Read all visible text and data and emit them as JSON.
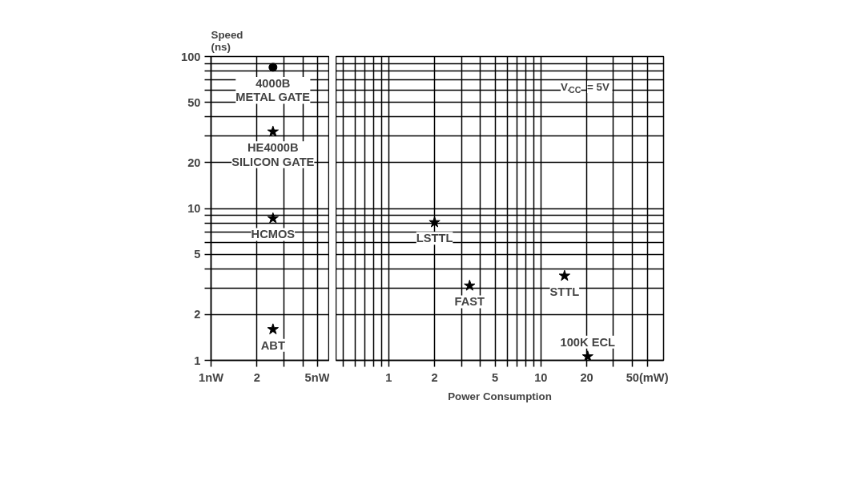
{
  "chart_data": [
    {
      "type": "scatter",
      "log": "xy",
      "ylabel": "Speed\n(ns)",
      "xlim": [
        1,
        6
      ],
      "xticks": [
        {
          "value": 1,
          "label": "1nW"
        },
        2,
        {
          "value": 3,
          "label": null
        },
        {
          "value": 4,
          "label": null
        },
        {
          "value": 5,
          "label": "5nW"
        }
      ],
      "ylim": [
        1,
        100
      ],
      "yticks": [
        1,
        2,
        {
          "value": 3,
          "label": null
        },
        {
          "value": 4,
          "label": null
        },
        5,
        {
          "value": 6,
          "label": null
        },
        {
          "value": 7,
          "label": null
        },
        {
          "value": 8,
          "label": null
        },
        {
          "value": 9,
          "label": null
        },
        10,
        20,
        {
          "value": 30,
          "label": null
        },
        {
          "value": 40,
          "label": null
        },
        50,
        {
          "value": 60,
          "label": null
        },
        {
          "value": 70,
          "label": null
        },
        {
          "value": 80,
          "label": null
        },
        {
          "value": 90,
          "label": null
        },
        100
      ],
      "grid": true,
      "series": [
        {
          "name": "4000B\nMETAL GATE",
          "color": "#000000",
          "marker": "circle",
          "x": [
            2.55
          ],
          "values": [
            85
          ]
        },
        {
          "name": "HE4000B\nSILICON GATE",
          "color": "#000000",
          "marker": "star",
          "x": [
            2.55
          ],
          "values": [
            32
          ]
        },
        {
          "name": "HCMOS",
          "color": "#000000",
          "marker": "star",
          "x": [
            2.55
          ],
          "values": [
            8.6
          ]
        },
        {
          "name": "ABT",
          "color": "#000000",
          "marker": "star",
          "x": [
            2.55
          ],
          "values": [
            1.6
          ]
        }
      ]
    },
    {
      "type": "scatter",
      "log": "xy",
      "xlabel": "Power Consumption",
      "xlim": [
        0.45,
        64
      ],
      "xticks": [
        {
          "value": 0.5,
          "label": null
        },
        {
          "value": 0.6,
          "label": null
        },
        {
          "value": 0.7,
          "label": null
        },
        {
          "value": 0.8,
          "label": null
        },
        {
          "value": 0.9,
          "label": null
        },
        1,
        2,
        {
          "value": 3,
          "label": null
        },
        {
          "value": 4,
          "label": null
        },
        5,
        {
          "value": 6,
          "label": null
        },
        {
          "value": 7,
          "label": null
        },
        {
          "value": 8,
          "label": null
        },
        {
          "value": 9,
          "label": null
        },
        10,
        20,
        {
          "value": 30,
          "label": null
        },
        {
          "value": 40,
          "label": null
        },
        {
          "value": 50,
          "label": "50(mW)"
        }
      ],
      "ylim": [
        1,
        100
      ],
      "yticks": [
        1,
        2,
        {
          "value": 3,
          "label": null
        },
        {
          "value": 4,
          "label": null
        },
        5,
        {
          "value": 6,
          "label": null
        },
        {
          "value": 7,
          "label": null
        },
        {
          "value": 8,
          "label": null
        },
        {
          "value": 9,
          "label": null
        },
        10,
        20,
        {
          "value": 30,
          "label": null
        },
        {
          "value": 40,
          "label": null
        },
        50,
        {
          "value": 60,
          "label": null
        },
        {
          "value": 70,
          "label": null
        },
        {
          "value": 80,
          "label": null
        },
        {
          "value": 90,
          "label": null
        },
        100
      ],
      "grid": true,
      "tick_labels": "x",
      "annotations": [
        "V$_{CC}$ = 5V"
      ],
      "series": [
        {
          "name": "LSTTL",
          "color": "#000000",
          "marker": "star",
          "x": [
            2
          ],
          "values": [
            8.1
          ]
        },
        {
          "name": "FAST",
          "color": "#000000",
          "marker": "star",
          "x": [
            3.4
          ],
          "values": [
            3.1
          ]
        },
        {
          "name": "STTL",
          "color": "#000000",
          "marker": "star",
          "x": [
            14.3
          ],
          "values": [
            3.6
          ]
        },
        {
          "name": "100K ECL",
          "color": "#000000",
          "marker": "star",
          "x": [
            20.3
          ],
          "values": [
            1.06
          ]
        }
      ]
    }
  ]
}
